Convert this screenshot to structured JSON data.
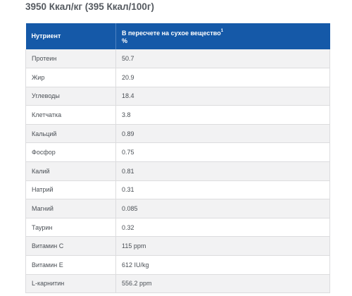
{
  "heading": "3950 Ккал/кг (395 Ккал/100г)",
  "table": {
    "header": {
      "col1": "Нутриент",
      "col2_line1": "В пересчете на сухое вещество",
      "col2_sup": "1",
      "col2_line2": "%"
    },
    "rows": [
      {
        "name": "Протеин",
        "value": "50.7"
      },
      {
        "name": "Жир",
        "value": "20.9"
      },
      {
        "name": "Углеводы",
        "value": "18.4"
      },
      {
        "name": "Клетчатка",
        "value": "3.8"
      },
      {
        "name": "Кальций",
        "value": "0.89"
      },
      {
        "name": "Фосфор",
        "value": "0.75"
      },
      {
        "name": "Калий",
        "value": "0.81"
      },
      {
        "name": "Натрий",
        "value": "0.31"
      },
      {
        "name": "Магний",
        "value": "0.085"
      },
      {
        "name": "Таурин",
        "value": "0.32"
      },
      {
        "name": "Витамин С",
        "value": "115 ppm"
      },
      {
        "name": "Витамин Е",
        "value": "612 IU/kg"
      },
      {
        "name": "L-карнитин",
        "value": "556.2 ppm"
      }
    ]
  }
}
